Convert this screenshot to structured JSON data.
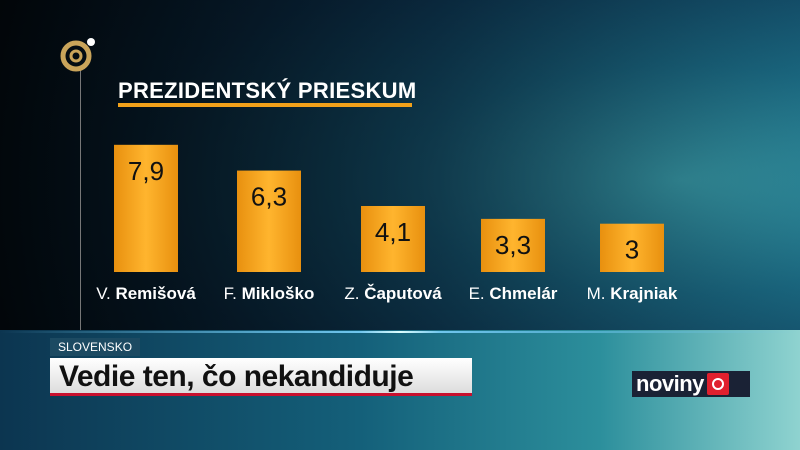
{
  "chart_data": {
    "type": "bar",
    "title": "PREZIDENTSKÝ PRIESKUM",
    "categories": [
      [
        "V.",
        "Remišová"
      ],
      [
        "F.",
        "Mikloško"
      ],
      [
        "Z.",
        "Čaputová"
      ],
      [
        "E.",
        "Chmelár"
      ],
      [
        "M.",
        "Krajniak"
      ]
    ],
    "values": [
      7.9,
      6.3,
      4.1,
      3.3,
      3
    ],
    "value_labels": [
      "7,9",
      "6,3",
      "4,1",
      "3,3",
      "3"
    ],
    "bar_color": "#f5a623"
  },
  "ticker": {
    "section": "SLOVENSKO",
    "headline": "Vedie ten, čo nekandiduje"
  },
  "brand": {
    "name": "noviny",
    "accent": "#e0202e"
  }
}
